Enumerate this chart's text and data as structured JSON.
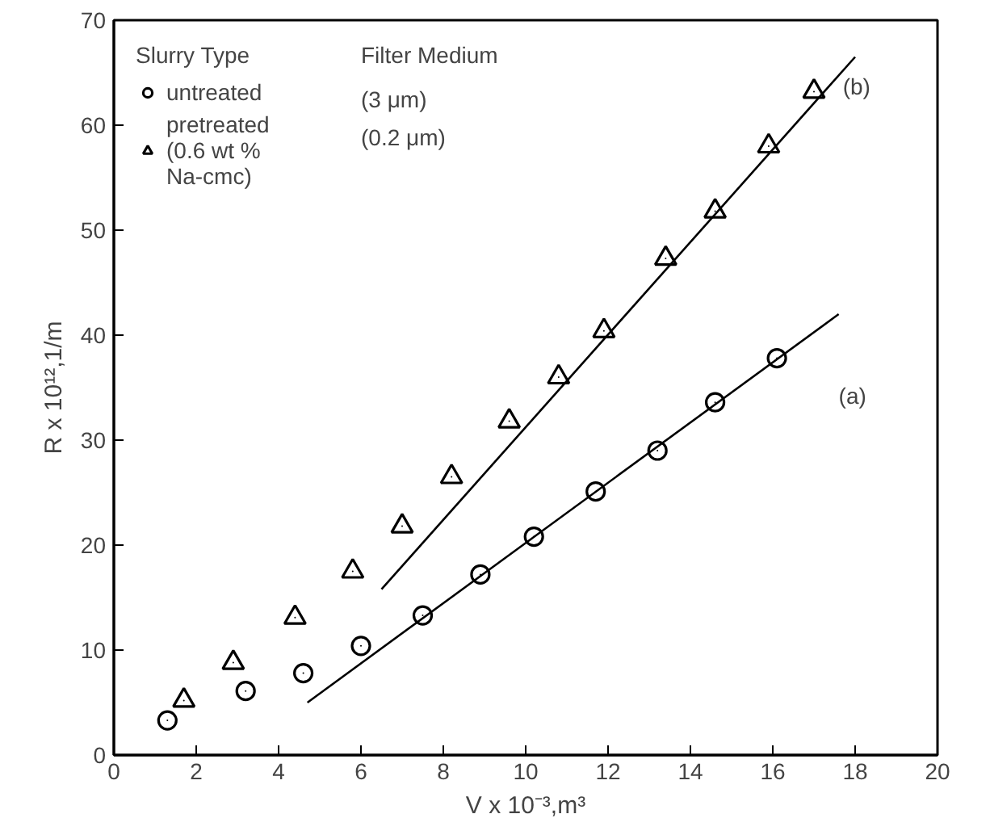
{
  "chart_data": {
    "type": "scatter",
    "xlabel": "V x 10⁻³,m³",
    "ylabel": "R x 10¹²,1/m",
    "legend_title": "Slurry Type",
    "legend": "top left",
    "xlim": [
      0,
      20
    ],
    "ylim": [
      0,
      70
    ],
    "xticks": [
      0,
      2,
      4,
      6,
      8,
      10,
      12,
      14,
      16,
      18,
      20
    ],
    "yticks": [
      0,
      10,
      20,
      30,
      40,
      50,
      60,
      70
    ],
    "grid": false,
    "series": [
      {
        "name": "untreated",
        "color": "#000000",
        "marker": "circle",
        "x": [
          1.3,
          3.2,
          4.6,
          6.0,
          7.5,
          8.9,
          10.2,
          11.7,
          13.2,
          14.6,
          16.1
        ],
        "values": [
          3.3,
          6.1,
          7.8,
          10.4,
          13.3,
          17.2,
          20.8,
          25.1,
          29.0,
          33.6,
          37.8
        ]
      },
      {
        "name": "pretreated\n(0.6 wt %\nNa-cmc)",
        "color": "#000000",
        "marker": "triangle",
        "x": [
          1.7,
          2.9,
          4.4,
          5.8,
          7.0,
          8.2,
          9.6,
          10.8,
          11.9,
          13.4,
          14.6,
          15.9,
          17.0
        ],
        "values": [
          5.2,
          8.8,
          13.1,
          17.5,
          21.8,
          26.5,
          31.8,
          36.0,
          40.4,
          47.3,
          51.8,
          58.0,
          63.2
        ]
      },
      {
        "type": "line",
        "color": "#000000",
        "x": [
          4.7,
          17.6
        ],
        "values": [
          5.0,
          42.0
        ]
      },
      {
        "type": "line",
        "color": "#000000",
        "x": [
          6.5,
          18.0
        ],
        "values": [
          15.8,
          66.5
        ]
      }
    ],
    "annotations": [
      "Filter Medium",
      "(3 μm)",
      "(0.2 μm)",
      "(a)",
      "(b)"
    ]
  }
}
